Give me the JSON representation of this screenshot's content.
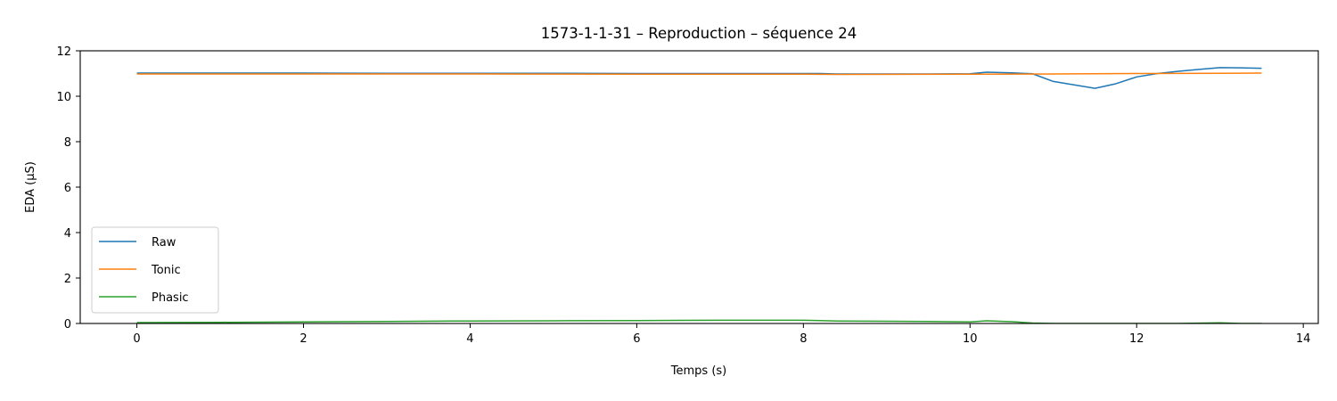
{
  "chart_data": {
    "type": "line",
    "title": "1573-1-1-31 – Reproduction – séquence 24",
    "xlabel": "Temps (s)",
    "ylabel": "EDA (µS)",
    "xlim": [
      -0.68,
      14.18
    ],
    "ylim": [
      0,
      12
    ],
    "xticks": [
      0,
      2,
      4,
      6,
      8,
      10,
      12,
      14
    ],
    "yticks": [
      0,
      2,
      4,
      6,
      8,
      10,
      12
    ],
    "grid": false,
    "legend": "lower-left",
    "series": [
      {
        "name": "Raw",
        "color": "#1f77b4",
        "x": [
          0,
          1,
          2,
          3,
          4,
          5,
          6,
          7,
          8,
          8.2,
          8.4,
          9,
          9.5,
          10,
          10.2,
          10.5,
          10.75,
          11,
          11.25,
          11.5,
          11.75,
          12,
          12.25,
          12.5,
          12.75,
          13,
          13.25,
          13.5
        ],
        "y": [
          11.02,
          11.02,
          11.02,
          11.01,
          11.01,
          11.01,
          11.0,
          11.0,
          11.0,
          11.0,
          10.98,
          10.98,
          10.98,
          10.99,
          11.06,
          11.03,
          10.99,
          10.65,
          10.5,
          10.35,
          10.55,
          10.85,
          11.0,
          11.1,
          11.18,
          11.26,
          11.25,
          11.23
        ]
      },
      {
        "name": "Tonic",
        "color": "#ff7f0e",
        "x": [
          0,
          2,
          4,
          6,
          8,
          8.4,
          10,
          11,
          12,
          13,
          13.5
        ],
        "y": [
          10.98,
          10.98,
          10.98,
          10.97,
          10.97,
          10.96,
          10.97,
          10.98,
          11.0,
          11.01,
          11.02
        ]
      },
      {
        "name": "Phasic",
        "color": "#2ca02c",
        "x": [
          0,
          1,
          2,
          3,
          4,
          5,
          6,
          7,
          7.5,
          8,
          8.2,
          8.4,
          9,
          9.5,
          10,
          10.2,
          10.5,
          10.75,
          11,
          12,
          12.5,
          13,
          13.25,
          13.5
        ],
        "y": [
          0.04,
          0.05,
          0.07,
          0.09,
          0.11,
          0.12,
          0.13,
          0.14,
          0.14,
          0.14,
          0.13,
          0.11,
          0.1,
          0.09,
          0.07,
          0.12,
          0.08,
          0.02,
          0.0,
          0.0,
          0.0,
          0.03,
          0.0,
          0.0
        ]
      }
    ]
  }
}
